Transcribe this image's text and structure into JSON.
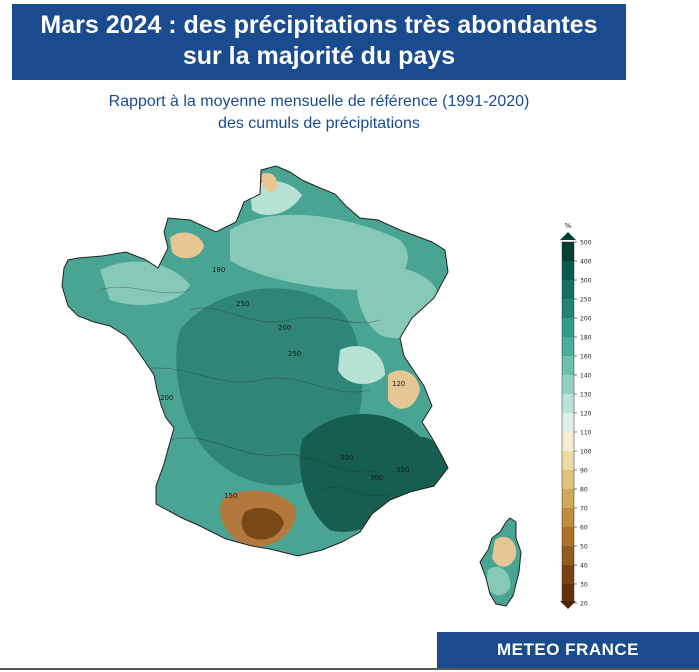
{
  "header": {
    "title_line1": "Mars 2024 : des précipitations très abondantes",
    "title_line2": "sur la majorité du pays",
    "subtitle_line1": "Rapport à la moyenne mensuelle de référence (1991-2020)",
    "subtitle_line2": "des cumuls de précipitations"
  },
  "legend": {
    "unit": "%",
    "ticks": [
      "500",
      "400",
      "300",
      "250",
      "200",
      "180",
      "160",
      "140",
      "130",
      "120",
      "110",
      "100",
      "90",
      "80",
      "70",
      "60",
      "50",
      "40",
      "30",
      "20"
    ],
    "colors": [
      "#013f34",
      "#0a5a4c",
      "#16705f",
      "#238571",
      "#339a85",
      "#4aad98",
      "#6cc0ad",
      "#94d2c2",
      "#b9e2d9",
      "#dcefe9",
      "#f5ecd3",
      "#eedba6",
      "#e0c27d",
      "#d1a75a",
      "#c18c3e",
      "#ac722a",
      "#94591c",
      "#7b4312",
      "#63300a"
    ],
    "arrow_top": "#013f34",
    "arrow_bottom": "#4f2604"
  },
  "map": {
    "colors": {
      "base": "#4aa494",
      "wet_center": "#2f8677",
      "very_wet": "#155e50",
      "humid": "#86c9b8",
      "light": "#b9e2d6",
      "dry": "#e6c793",
      "dry_strong": "#b3783d",
      "dry_core": "#7a4716",
      "contour": "#2c2c2c"
    },
    "contour_labels": [
      "200",
      "250",
      "300",
      "300",
      "350",
      "200",
      "180",
      "250",
      "120",
      "150"
    ]
  },
  "footer": {
    "brand": "METEO FRANCE"
  }
}
